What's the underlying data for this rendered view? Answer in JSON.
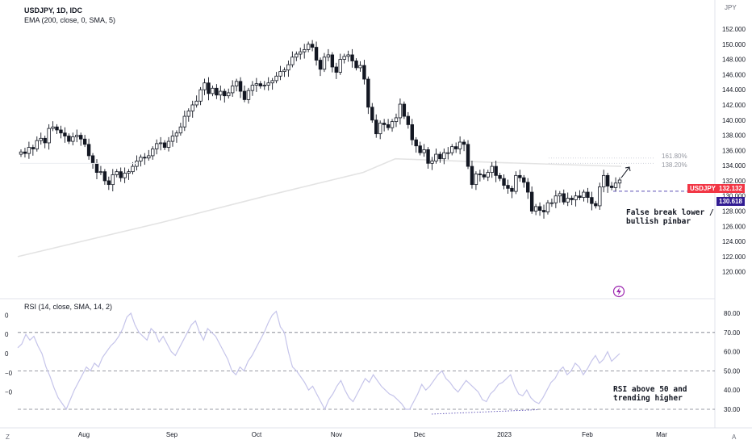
{
  "header": {
    "title": "USDJPY, 1D, IDC",
    "ema_label": "EMA (200, close, 0, SMA, 5)",
    "rsi_label": "RSI (14, close, SMA, 14, 2)",
    "currency": "JPY"
  },
  "price_tags": {
    "last": "132.132",
    "last_symbol": "USDJPY",
    "line_level": "130.618"
  },
  "annotations": {
    "false_break": "False break lower /\nbullish pinbar",
    "rsi_note": "RSI above 50 and\ntrending higher",
    "fib_1618": "161.80%",
    "fib_1382": "138.20%"
  },
  "footer": {
    "left": "Z",
    "right": "A"
  },
  "colors": {
    "price_tag": "#f23645",
    "level_tag": "#311b92",
    "rsi_line": "#c5c4ea",
    "ema_line": "#e3e3e3",
    "dashed": "#5b4fb5"
  },
  "chart_data": [
    {
      "type": "candlestick",
      "title": "USDJPY, 1D, IDC",
      "ylabel": "JPY",
      "ylim": [
        120,
        153
      ],
      "y_ticks": [
        "152.000",
        "150.000",
        "148.000",
        "146.000",
        "144.000",
        "142.000",
        "140.000",
        "138.000",
        "136.000",
        "134.000",
        "132.000",
        "130.000",
        "128.000",
        "126.000",
        "124.000",
        "122.000",
        "120.000"
      ],
      "x_ticks": [
        "Aug",
        "Sep",
        "Oct",
        "Nov",
        "Dec",
        "2023",
        "Feb",
        "Mar"
      ],
      "close_series": [
        135.8,
        135.6,
        136.4,
        136.2,
        137.3,
        137.6,
        137.0,
        138.9,
        139.1,
        138.7,
        138.3,
        137.9,
        137.2,
        137.8,
        138.0,
        137.5,
        136.8,
        135.3,
        134.3,
        133.1,
        133.2,
        132.0,
        131.5,
        132.8,
        133.2,
        132.4,
        133.0,
        133.2,
        133.9,
        134.6,
        135.1,
        135.0,
        135.3,
        136.2,
        136.9,
        137.0,
        136.4,
        137.2,
        137.9,
        138.3,
        139.1,
        140.5,
        141.2,
        142.0,
        142.5,
        144.0,
        144.9,
        143.5,
        144.2,
        143.3,
        143.8,
        143.2,
        143.6,
        144.5,
        145.1,
        143.8,
        142.7,
        143.9,
        144.6,
        144.8,
        144.5,
        144.6,
        144.9,
        145.2,
        145.8,
        146.4,
        146.6,
        147.3,
        148.3,
        148.7,
        149.0,
        149.3,
        150.0,
        149.6,
        147.9,
        146.7,
        148.3,
        148.6,
        147.0,
        146.3,
        148.0,
        148.4,
        148.6,
        147.8,
        146.9,
        147.2,
        145.4,
        141.7,
        140.0,
        138.2,
        139.6,
        139.4,
        139.0,
        139.8,
        140.3,
        142.1,
        140.5,
        139.4,
        137.4,
        136.6,
        135.7,
        136.1,
        134.3,
        134.6,
        135.5,
        134.9,
        135.7,
        135.7,
        136.5,
        136.2,
        137.1,
        136.8,
        133.9,
        131.5,
        132.9,
        132.8,
        132.5,
        133.1,
        133.9,
        132.7,
        132.3,
        131.4,
        131.0,
        130.6,
        132.7,
        132.4,
        131.8,
        130.5,
        128.0,
        128.6,
        128.1,
        127.9,
        129.1,
        129.1,
        130.0,
        130.3,
        129.2,
        129.7,
        129.5,
        130.0,
        129.8,
        130.5,
        129.8,
        129.0,
        128.7,
        131.2,
        132.7,
        131.3,
        131.1,
        131.7,
        132.1
      ],
      "series": [
        {
          "name": "EMA (200, close, 0, SMA, 5)",
          "values": [
            122.0,
            126.5,
            130.0,
            133.1,
            134.9,
            134.4,
            133.9
          ]
        }
      ],
      "levels": [
        130.618,
        132.132
      ]
    },
    {
      "type": "line",
      "title": "RSI (14, close, SMA, 14, 2)",
      "ylim": [
        20,
        85
      ],
      "y_ticks": [
        "80.00",
        "70.00",
        "60.00",
        "50.00",
        "40.00",
        "30.00"
      ],
      "left_ticks": [
        "0",
        "0",
        "0",
        "−0",
        "−0"
      ],
      "bands": [
        70,
        50,
        30
      ],
      "values": [
        62,
        64,
        69,
        66,
        68,
        63,
        59,
        52,
        47,
        41,
        36,
        33,
        30,
        35,
        40,
        44,
        48,
        52,
        50,
        54,
        52,
        57,
        60,
        63,
        65,
        68,
        72,
        78,
        80,
        74,
        70,
        68,
        66,
        72,
        70,
        65,
        68,
        64,
        60,
        58,
        62,
        66,
        70,
        74,
        76,
        70,
        66,
        72,
        70,
        68,
        64,
        60,
        56,
        50,
        48,
        52,
        50,
        55,
        58,
        62,
        66,
        70,
        75,
        79,
        81,
        73,
        70,
        60,
        52,
        50,
        47,
        44,
        40,
        42,
        38,
        34,
        30,
        35,
        38,
        42,
        45,
        40,
        36,
        34,
        38,
        42,
        46,
        44,
        48,
        45,
        42,
        40,
        38,
        37,
        35,
        33,
        30,
        30,
        34,
        38,
        43,
        40,
        42,
        45,
        48,
        50,
        46,
        44,
        41,
        39,
        42,
        45,
        43,
        41,
        39,
        35,
        34,
        38,
        40,
        43,
        44,
        46,
        48,
        42,
        38,
        37,
        40,
        36,
        34,
        33,
        36,
        40,
        44,
        46,
        50,
        52,
        48,
        50,
        54,
        52,
        48,
        51,
        55,
        58,
        54,
        56,
        60,
        55,
        57,
        59
      ]
    }
  ]
}
